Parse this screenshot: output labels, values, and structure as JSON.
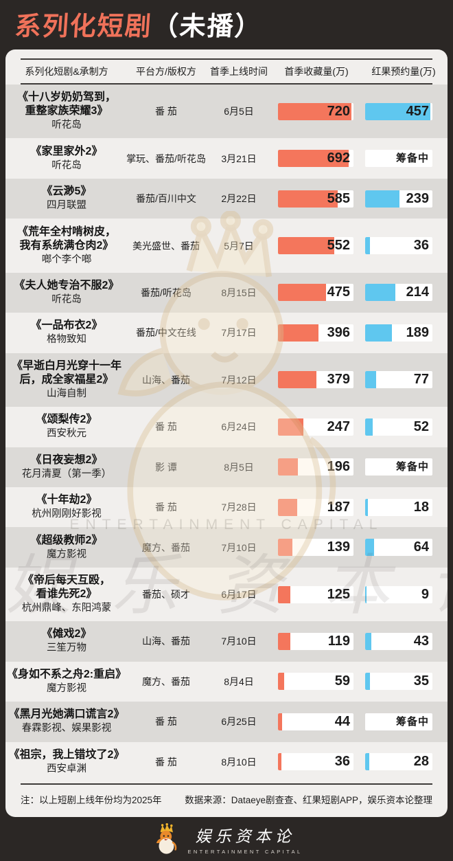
{
  "page": {
    "title_highlight": "系列化短剧",
    "title_suffix": "（未播）"
  },
  "colors": {
    "title_accent": "#F0725A",
    "collection_bar": "#F4765C",
    "reservation_bar": "#5FC7EF",
    "shaded_row": "#DCDAD7",
    "card_bg": "#F1EFED",
    "frame_bg": "#2B2725"
  },
  "table": {
    "columns": [
      "系列化短剧&承制方",
      "平台方/版权方",
      "首季上线时间",
      "首季收藏量(万)",
      "红果预约量(万)"
    ],
    "bar_max": {
      "collection": 720,
      "reservation": 457
    },
    "pending_label": "筹备中",
    "rows": [
      {
        "title": "《十八岁奶奶驾到，\n重整家族荣耀3》",
        "producer": "听花岛",
        "platform": "番 茄",
        "date": "6月5日",
        "collection": 720,
        "reservation": 457
      },
      {
        "title": "《家里家外2》",
        "producer": "听花岛",
        "platform": "掌玩、番茄/听花岛",
        "date": "3月21日",
        "collection": 692,
        "reservation": "筹备中"
      },
      {
        "title": "《云渺5》",
        "producer": "四月联盟",
        "platform": "番茄/百川中文",
        "date": "2月22日",
        "collection": 585,
        "reservation": 239
      },
      {
        "title": "《荒年全村啃树皮，\n我有系统满仓肉2》",
        "producer": "啷个李个啷",
        "platform": "美光盛世、番茄",
        "date": "5月7日",
        "collection": 552,
        "reservation": 36
      },
      {
        "title": "《夫人她专治不服2》",
        "producer": "听花岛",
        "platform": "番茄/听花岛",
        "date": "8月15日",
        "collection": 475,
        "reservation": 214
      },
      {
        "title": "《一品布衣2》",
        "producer": "格物致知",
        "platform": "番茄/中文在线",
        "date": "7月17日",
        "collection": 396,
        "reservation": 189
      },
      {
        "title": "《早逝白月光穿十一年\n后，成全家福星2》",
        "producer": "山海自制",
        "platform": "山海、番茄",
        "date": "7月12日",
        "collection": 379,
        "reservation": 77
      },
      {
        "title": "《颂梨传2》",
        "producer": "西安秋元",
        "platform": "番 茄",
        "date": "6月24日",
        "collection": 247,
        "reservation": 52
      },
      {
        "title": "《日夜妄想2》",
        "producer": "花月清夏（第一季）",
        "platform": "影 谭",
        "date": "8月5日",
        "collection": 196,
        "reservation": "筹备中"
      },
      {
        "title": "《十年劫2》",
        "producer": "杭州刚刚好影视",
        "platform": "番 茄",
        "date": "7月28日",
        "collection": 187,
        "reservation": 18
      },
      {
        "title": "《超级教师2》",
        "producer": "魔方影视",
        "platform": "魔方、番茄",
        "date": "7月10日",
        "collection": 139,
        "reservation": 64
      },
      {
        "title": "《帝后每天互殴，\n看谁先死2》",
        "producer": "杭州鼎峰、东阳鸿蒙",
        "platform": "番茄、硕才",
        "date": "6月17日",
        "collection": 125,
        "reservation": 9
      },
      {
        "title": "《傩戏2》",
        "producer": "三笙万物",
        "platform": "山海、番茄",
        "date": "7月10日",
        "collection": 119,
        "reservation": 43
      },
      {
        "title": "《身如不系之舟2:重启》",
        "producer": "魔方影视",
        "platform": "魔方、番茄",
        "date": "8月4日",
        "collection": 59,
        "reservation": 35
      },
      {
        "title": "《黑月光她满口谎言2》",
        "producer": "春霖影视、娱果影视",
        "platform": "番 茄",
        "date": "6月25日",
        "collection": 44,
        "reservation": "筹备中"
      },
      {
        "title": "《祖宗，我上错坟了2》",
        "producer": "西安卓渊",
        "platform": "番 茄",
        "date": "8月10日",
        "collection": 36,
        "reservation": 28
      }
    ]
  },
  "footnote": {
    "left": "注：以上短剧上线年份均为2025年",
    "right": "数据来源：Dataeye剧查查、红果短剧APP，娱乐资本论整理"
  },
  "watermark": {
    "text_en": "ENTERTAINMENT CAPITAL",
    "text_cn": "娱 乐 资 本 论"
  },
  "footer": {
    "logo_cn": "娱乐资本论",
    "logo_en": "ENTERTAINMENT CAPITAL"
  },
  "chart_data": {
    "type": "bar",
    "orientation": "horizontal",
    "title": "系列化短剧（未播）",
    "unit": "万",
    "categories": [
      "《十八岁奶奶驾到，重整家族荣耀3》",
      "《家里家外2》",
      "《云渺5》",
      "《荒年全村啃树皮，我有系统满仓肉2》",
      "《夫人她专治不服2》",
      "《一品布衣2》",
      "《早逝白月光穿十一年后，成全家福星2》",
      "《颂梨传2》",
      "《日夜妄想2》",
      "《十年劫2》",
      "《超级教师2》",
      "《帝后每天互殴，看谁先死2》",
      "《傩戏2》",
      "《身如不系之舟2:重启》",
      "《黑月光她满口谎言2》",
      "《祖宗，我上错坟了2》"
    ],
    "series": [
      {
        "name": "首季收藏量(万)",
        "color": "#F4765C",
        "values": [
          720,
          692,
          585,
          552,
          475,
          396,
          379,
          247,
          196,
          187,
          139,
          125,
          119,
          59,
          44,
          36
        ]
      },
      {
        "name": "红果预约量(万)",
        "color": "#5FC7EF",
        "values": [
          457,
          "筹备中",
          239,
          36,
          214,
          189,
          77,
          52,
          "筹备中",
          18,
          64,
          9,
          43,
          35,
          "筹备中",
          28
        ]
      }
    ],
    "value_axis_max": {
      "首季收藏量(万)": 720,
      "红果预约量(万)": 457
    },
    "grid": false,
    "legend_position": "column-headers"
  }
}
